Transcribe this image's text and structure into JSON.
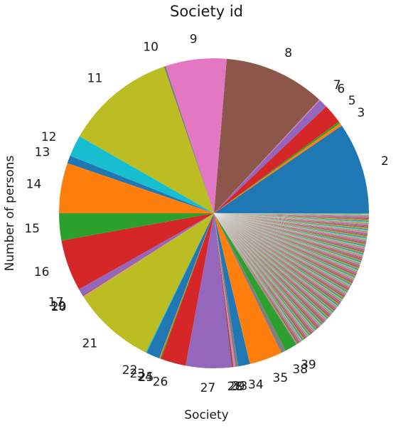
{
  "chart_data": {
    "type": "pie",
    "title": "Society id",
    "xlabel": "Society",
    "ylabel": "Number of persons",
    "start_angle_deg": 0,
    "direction": "clockwise",
    "slice_labels": [
      "2",
      "3",
      "5",
      "6",
      "7",
      "8",
      "9",
      "10",
      "11",
      "12",
      "13",
      "14",
      "15",
      "16",
      "17",
      "19",
      "20",
      "21",
      "22",
      "23",
      "24",
      "25",
      "26",
      "27",
      "28",
      "29",
      "33",
      "34",
      "35",
      "38",
      "39"
    ],
    "slices": [
      {
        "label": "2",
        "value": 9.5,
        "color": "#1f77b4"
      },
      {
        "label": "3",
        "value": 0.3,
        "color": "#ff7f0e"
      },
      {
        "label": "",
        "value": 0.2,
        "color": "#2ca02c"
      },
      {
        "label": "5",
        "value": 2.0,
        "color": "#d62728"
      },
      {
        "label": "6",
        "value": 0.9,
        "color": "#9467bd"
      },
      {
        "label": "7",
        "value": 0.1,
        "color": "#e377c2"
      },
      {
        "label": "8",
        "value": 10.5,
        "color": "#8c564b"
      },
      {
        "label": "9",
        "value": 6.3,
        "color": "#e377c2"
      },
      {
        "label": "10",
        "value": 0.2,
        "color": "#7f7f7f"
      },
      {
        "label": "11",
        "value": 11.4,
        "color": "#bcbd22"
      },
      {
        "label": "12",
        "value": 2.2,
        "color": "#17becf"
      },
      {
        "label": "13",
        "value": 0.8,
        "color": "#1f77b4"
      },
      {
        "label": "14",
        "value": 5.2,
        "color": "#ff7f0e"
      },
      {
        "label": "15",
        "value": 2.8,
        "color": "#2ca02c"
      },
      {
        "label": "16",
        "value": 5.3,
        "color": "#d62728"
      },
      {
        "label": "17",
        "value": 0.7,
        "color": "#9467bd"
      },
      {
        "label": "19",
        "value": 0.1,
        "color": "#8c564b"
      },
      {
        "label": "20",
        "value": 0.1,
        "color": "#e377c2"
      },
      {
        "label": "21",
        "value": 8.6,
        "color": "#bcbd22"
      },
      {
        "label": "22",
        "value": 0.1,
        "color": "#17becf"
      },
      {
        "label": "23",
        "value": 1.4,
        "color": "#1f77b4"
      },
      {
        "label": "24",
        "value": 0.1,
        "color": "#ff7f0e"
      },
      {
        "label": "25",
        "value": 0.1,
        "color": "#2ca02c"
      },
      {
        "label": "26",
        "value": 2.6,
        "color": "#d62728"
      },
      {
        "label": "27",
        "value": 4.7,
        "color": "#9467bd"
      },
      {
        "label": "28",
        "value": 0.2,
        "color": "#8c564b"
      },
      {
        "label": "29",
        "value": 0.2,
        "color": "#e377c2"
      },
      {
        "label": "33",
        "value": 0.3,
        "color": "#7f7f7f"
      },
      {
        "label": "34",
        "value": 1.2,
        "color": "#1f77b4"
      },
      {
        "label": "35",
        "value": 3.4,
        "color": "#ff7f0e"
      },
      {
        "label": "38",
        "value": 0.5,
        "color": "#7f7f7f"
      },
      {
        "label": "39",
        "value": 1.2,
        "color": "#2ca02c"
      }
    ],
    "many_small_slices": {
      "note": "",
      "count": 190,
      "total_value": 16.0,
      "palette": [
        "#1f77b4",
        "#ff7f0e",
        "#2ca02c",
        "#d62728",
        "#9467bd",
        "#8c564b",
        "#e377c2",
        "#7f7f7f",
        "#bcbd22",
        "#17becf"
      ]
    },
    "legend": "none",
    "grid": false
  }
}
